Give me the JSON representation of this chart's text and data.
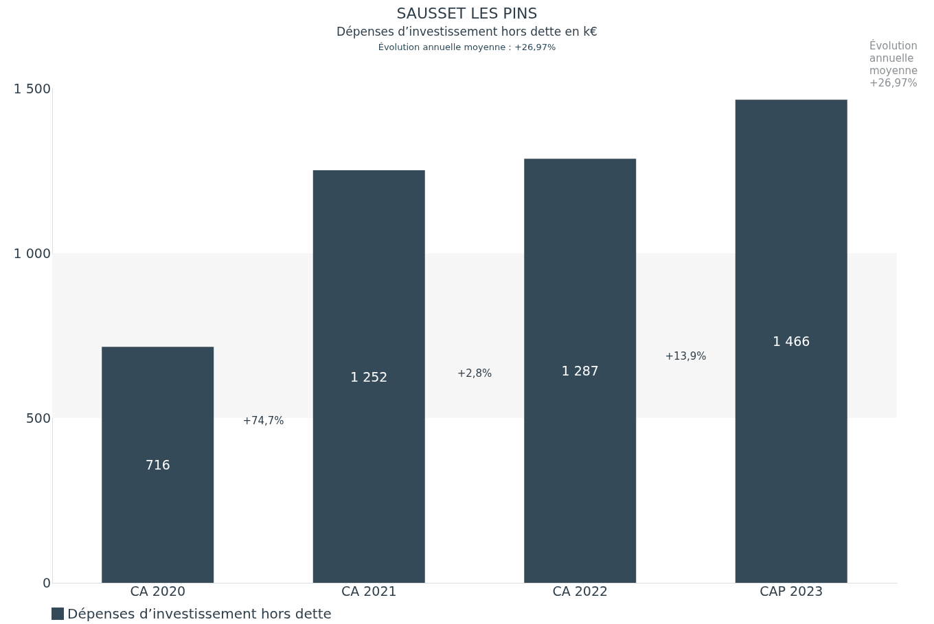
{
  "chart_data": {
    "type": "bar",
    "title": "SAUSSET LES PINS",
    "subtitle": "Dépenses d’investissement hors dette en k€",
    "annotations": [
      "Évolution annuelle moyenne : +26,97%",
      "Évolution annuelle moyenne +26,97%",
      "+74,7%",
      "+2,8%",
      "+13,9%"
    ],
    "categories": [
      "CA 2020",
      "CA 2021",
      "CA 2022",
      "CAP 2023"
    ],
    "series": [
      {
        "name": "Dépenses d’investissement hors dette",
        "color": "#344a59",
        "values": [
          716,
          1252,
          1287,
          1466
        ],
        "value_labels": [
          "716",
          "1 252",
          "1 287",
          "1 466"
        ]
      }
    ],
    "ylim": [
      0,
      1500
    ],
    "yticks": [
      0,
      {
        "value": 500,
        "label": "500"
      },
      {
        "value": 1000,
        "label": "1 000"
      },
      {
        "value": 1500,
        "label": "1 500"
      }
    ],
    "bands": [
      {
        "axis": "y",
        "from": 500,
        "to": 1000,
        "color": "#f7f7f7"
      }
    ],
    "grid": false,
    "legend": "bottom left"
  }
}
